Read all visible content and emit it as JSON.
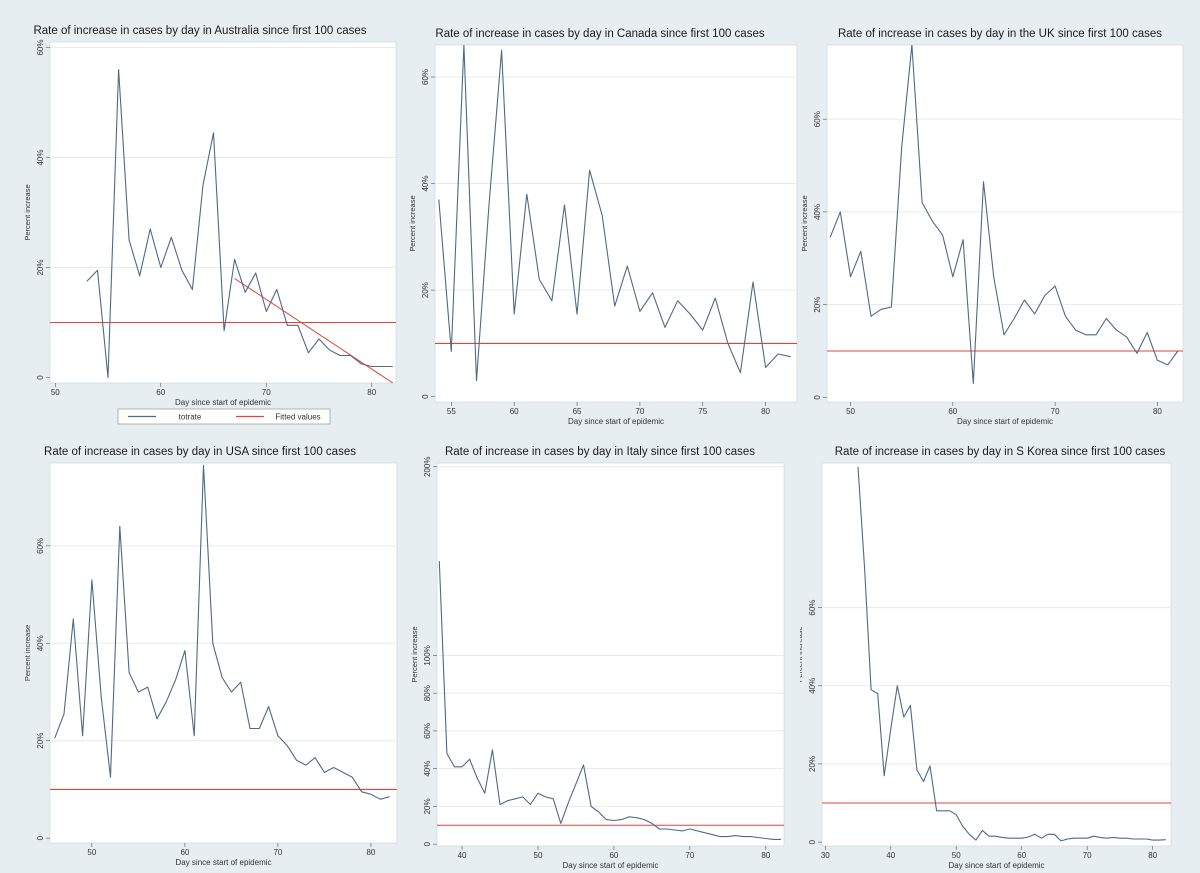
{
  "colors": {
    "background": "#e6eef2",
    "plot_bg": "#ffffff",
    "series": "#4e6a86",
    "fitted": "#e8403a",
    "grid": "#eaeaea"
  },
  "chart_data": [
    {
      "id": "australia",
      "type": "line",
      "title": "Rate of increase in cases by day in Australia since first 100 cases",
      "xlabel": "Day since start of epidemic",
      "ylabel": "Percent increase",
      "xlim": [
        49.5,
        82.3
      ],
      "ylim": [
        -1,
        61
      ],
      "xticks": [
        50,
        60,
        70,
        80
      ],
      "yticks": [
        0,
        20,
        40,
        60
      ],
      "ytick_labels": [
        "0",
        "20%",
        "40%",
        "60%"
      ],
      "grid_y": [
        20,
        40,
        60
      ],
      "reference_line": 10,
      "series": [
        {
          "name": "totrate",
          "x": [
            53,
            54,
            55,
            56,
            57,
            58,
            59,
            60,
            61,
            62,
            63,
            64,
            65,
            66,
            67,
            68,
            69,
            70,
            71,
            72,
            73,
            74,
            75,
            76,
            77,
            78,
            79,
            80,
            81,
            82
          ],
          "values": [
            17.5,
            19.5,
            0,
            56,
            25,
            18.5,
            27,
            20,
            25.5,
            19.5,
            16,
            35,
            44.5,
            8.5,
            21.5,
            15.5,
            19,
            12,
            16,
            9.5,
            9.5,
            4.5,
            7,
            5,
            4,
            4,
            2.5,
            2,
            2,
            2
          ]
        }
      ],
      "fitted": {
        "name": "Fitted values",
        "x": [
          67,
          82
        ],
        "values": [
          18,
          -1
        ]
      },
      "legend": [
        "totrate",
        "Fitted values"
      ]
    },
    {
      "id": "canada",
      "type": "line",
      "title": "Rate of increase in cases by day in Canada since first 100 cases",
      "xlabel": "Day since start of epidemic",
      "ylabel": "Percent increase",
      "xlim": [
        53.7,
        82.5
      ],
      "ylim": [
        -1,
        66
      ],
      "xticks": [
        55,
        60,
        65,
        70,
        75,
        80
      ],
      "yticks": [
        0,
        20,
        40,
        60
      ],
      "ytick_labels": [
        "0",
        "20%",
        "40%",
        "60%"
      ],
      "grid_y": [
        20,
        40,
        60
      ],
      "reference_line": 10,
      "series": [
        {
          "name": "totrate",
          "x": [
            54,
            55,
            56,
            57,
            58,
            59,
            60,
            61,
            62,
            63,
            64,
            65,
            66,
            67,
            68,
            69,
            70,
            71,
            72,
            73,
            74,
            75,
            76,
            77,
            78,
            79,
            80,
            81,
            82
          ],
          "values": [
            37,
            8.5,
            66,
            3,
            36,
            65,
            15.5,
            38,
            22,
            18,
            36,
            15.5,
            42.5,
            34,
            17,
            24.5,
            16,
            19.5,
            13,
            18,
            15.5,
            12.5,
            18.5,
            10,
            4.5,
            21.5,
            5.5,
            8,
            7.5
          ]
        }
      ],
      "fitted": null,
      "legend": []
    },
    {
      "id": "uk",
      "type": "line",
      "title": "Rate of increase in cases by day in the UK since first 100 cases",
      "xlabel": "Day since start of epidemic",
      "ylabel": "Percent increase",
      "xlim": [
        47.7,
        82.5
      ],
      "ylim": [
        -1,
        76
      ],
      "xticks": [
        50,
        60,
        70,
        80
      ],
      "yticks": [
        0,
        20,
        40,
        60
      ],
      "ytick_labels": [
        "0",
        "20%",
        "40%",
        "60%"
      ],
      "grid_y": [
        20,
        40,
        60
      ],
      "reference_line": 10,
      "series": [
        {
          "name": "totrate",
          "x": [
            48,
            49,
            50,
            51,
            52,
            53,
            54,
            55,
            56,
            57,
            58,
            59,
            60,
            61,
            62,
            63,
            64,
            65,
            66,
            67,
            68,
            69,
            70,
            71,
            72,
            73,
            74,
            75,
            76,
            77,
            78,
            79,
            80,
            81,
            82
          ],
          "values": [
            34.5,
            40,
            26,
            31.5,
            17.5,
            19,
            19.5,
            54,
            76,
            42,
            38,
            35,
            26,
            34,
            3,
            46.5,
            26,
            13.5,
            17,
            21,
            18,
            22,
            24,
            17.5,
            14.5,
            13.5,
            13.5,
            17,
            14.5,
            13,
            9.5,
            14,
            8,
            7,
            10
          ]
        }
      ],
      "fitted": null,
      "legend": []
    },
    {
      "id": "usa",
      "type": "line",
      "title": "Rate of increase in cases by day in USA since first 100 cases",
      "xlabel": "Day since start of epidemic",
      "ylabel": "Percent increase",
      "xlim": [
        45.5,
        82.8
      ],
      "ylim": [
        -1,
        77
      ],
      "xticks": [
        50,
        60,
        70,
        80
      ],
      "yticks": [
        0,
        20,
        40,
        60
      ],
      "ytick_labels": [
        "0",
        "20%",
        "40%",
        "60%"
      ],
      "grid_y": [
        20,
        40,
        60
      ],
      "reference_line": 10,
      "series": [
        {
          "name": "totrate",
          "x": [
            46,
            47,
            48,
            49,
            50,
            51,
            52,
            53,
            54,
            55,
            56,
            57,
            58,
            59,
            60,
            61,
            62,
            63,
            64,
            65,
            66,
            67,
            68,
            69,
            70,
            71,
            72,
            73,
            74,
            75,
            76,
            77,
            78,
            79,
            80,
            81,
            82
          ],
          "values": [
            20.5,
            25.5,
            45,
            21,
            53,
            29,
            12.5,
            64,
            34,
            30,
            31,
            24.5,
            28,
            32.5,
            38.5,
            21,
            76.5,
            40,
            33,
            30,
            32,
            22.5,
            22.5,
            27,
            21,
            19,
            16,
            15,
            16.5,
            13.5,
            14.5,
            13.5,
            12.5,
            9.5,
            9,
            8,
            8.5
          ]
        }
      ],
      "fitted": null,
      "legend": []
    },
    {
      "id": "italy",
      "type": "line",
      "title": "Rate of increase in cases by day in Italy since first 100 cases",
      "xlabel": "Day since start of epidemic",
      "ylabel": "Percent increase",
      "xlim": [
        36.7,
        82.4
      ],
      "ylim": [
        -1,
        202
      ],
      "xticks": [
        40,
        50,
        60,
        70,
        80
      ],
      "yticks": [
        0,
        20,
        40,
        60,
        80,
        100,
        200
      ],
      "ytick_labels": [
        "0",
        "20%",
        "40%",
        "60%",
        "80%",
        "100%",
        "200%"
      ],
      "grid_y": [
        20,
        40,
        60,
        80,
        100,
        200
      ],
      "reference_line": 10,
      "series": [
        {
          "name": "totrate",
          "x": [
            37,
            38,
            39,
            40,
            41,
            42,
            43,
            44,
            45,
            46,
            47,
            48,
            49,
            50,
            51,
            52,
            53,
            54,
            55,
            56,
            57,
            58,
            59,
            60,
            61,
            62,
            63,
            64,
            65,
            66,
            67,
            68,
            69,
            70,
            71,
            72,
            73,
            74,
            75,
            76,
            77,
            78,
            79,
            80,
            81,
            82
          ],
          "values": [
            150,
            48,
            41,
            41,
            45,
            35,
            27,
            50,
            21,
            23,
            24,
            25,
            21,
            27,
            25,
            24,
            11,
            22,
            32,
            42,
            20,
            17,
            13,
            12.5,
            13,
            14.5,
            14,
            13,
            11,
            8,
            8,
            7.5,
            7,
            8,
            7,
            6,
            5,
            4,
            4,
            4.5,
            4,
            4,
            3.5,
            3,
            2.5,
            2.5
          ]
        }
      ],
      "fitted": null,
      "legend": []
    },
    {
      "id": "skorea",
      "type": "line",
      "title": "Rate of increase in cases by day in S Korea since first 100 cases",
      "xlabel": "Day since start of epidemic",
      "ylabel": "Percent increase",
      "xlim": [
        29.5,
        82.8
      ],
      "ylim": [
        -1,
        97
      ],
      "xticks": [
        30,
        40,
        50,
        60,
        70,
        80
      ],
      "yticks": [
        0,
        20,
        40,
        60
      ],
      "ytick_labels": [
        "0",
        "20%",
        "40%",
        "60%"
      ],
      "grid_y": [
        20,
        40,
        60
      ],
      "reference_line": 10,
      "series": [
        {
          "name": "totrate",
          "x": [
            35,
            36,
            37,
            38,
            39,
            40,
            41,
            42,
            43,
            44,
            45,
            46,
            47,
            48,
            49,
            50,
            51,
            52,
            53,
            54,
            55,
            56,
            57,
            58,
            59,
            60,
            61,
            62,
            63,
            64,
            65,
            66,
            67,
            68,
            69,
            70,
            71,
            72,
            73,
            74,
            75,
            76,
            77,
            78,
            79,
            80,
            81,
            82
          ],
          "values": [
            96,
            70,
            39,
            38,
            17,
            29,
            40,
            32,
            35,
            18.5,
            15.5,
            19.5,
            8,
            8,
            8,
            7,
            4,
            2,
            0.5,
            3,
            1.5,
            1.5,
            1.2,
            1,
            1,
            1,
            1.3,
            2,
            1,
            2,
            2,
            0.3,
            0.8,
            1,
            1,
            1,
            1.5,
            1.2,
            1,
            1.2,
            1,
            1,
            0.8,
            0.8,
            0.8,
            0.5,
            0.5,
            0.6
          ]
        }
      ],
      "fitted": null,
      "legend": []
    }
  ]
}
